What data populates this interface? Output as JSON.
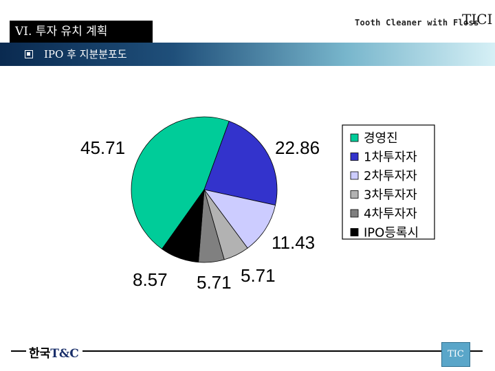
{
  "header": {
    "section_title": "VI. 투자 유치 계획",
    "sub_title": "IPO 후 지분분포도",
    "tagline": "Tooth Cleaner with Floss",
    "logo_text": "TICI"
  },
  "footer": {
    "brand_korean": "한국",
    "brand_latin": "T&C",
    "logo_text": "TIC"
  },
  "chart_data": {
    "type": "pie",
    "categories": [
      "경영진",
      "1차투자자",
      "2차투자자",
      "3차투자자",
      "4차투자자",
      "IPO등록시"
    ],
    "values": [
      45.71,
      22.86,
      11.43,
      5.71,
      5.71,
      8.57
    ],
    "colors": [
      "#00cc99",
      "#3333cc",
      "#ccccff",
      "#b2b2b2",
      "#808080",
      "#000000"
    ],
    "data_labels": [
      "45.71",
      "22.86",
      "11.43",
      "5.71",
      "5.71",
      "8.57"
    ],
    "legend_position": "right"
  }
}
